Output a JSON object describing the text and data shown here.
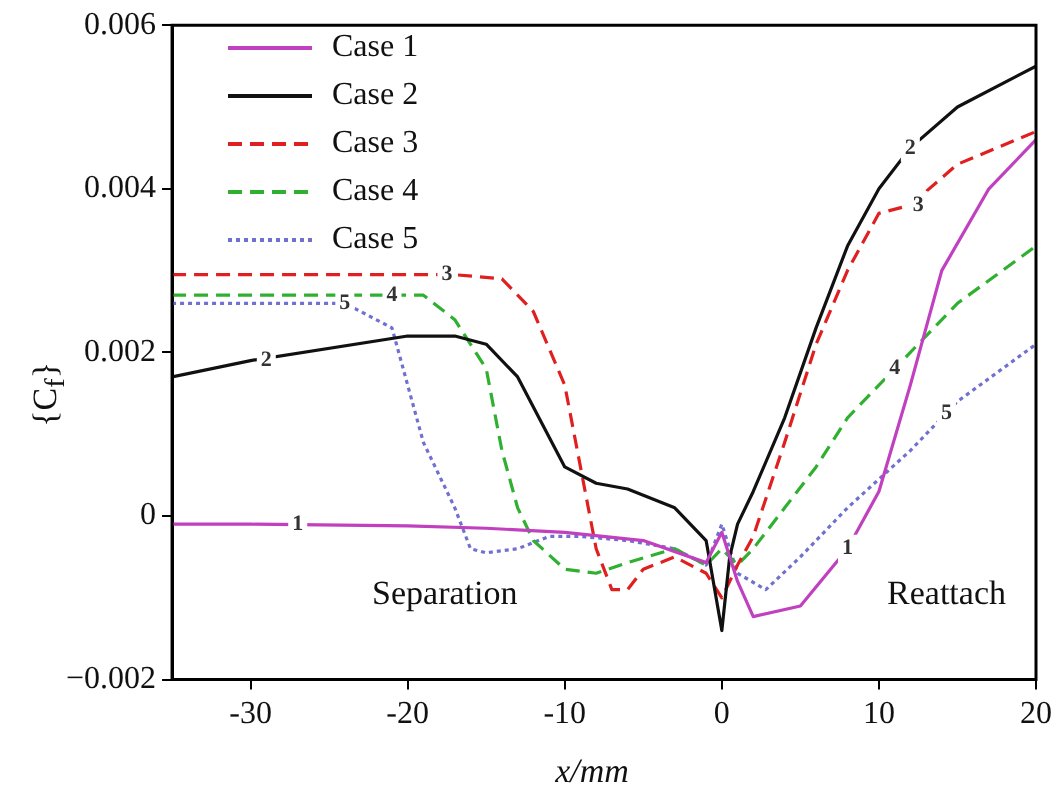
{
  "chart_data": {
    "type": "line",
    "xlabel": "x/mm",
    "ylabel": "{C$_{f}$}",
    "xlim": [
      -35,
      20
    ],
    "xticks": [
      -30,
      -20,
      -10,
      0,
      10,
      20
    ],
    "ylim": [
      -0.002,
      0.006
    ],
    "yticks": [
      {
        "value": -0.002,
        "label": "−0.002"
      },
      0,
      0.002,
      0.004,
      0.006
    ],
    "grid": false,
    "legend": "top left",
    "marker": "none",
    "annotations": [
      "Separation",
      "Reattach",
      {
        "text": "1",
        "x": -27,
        "y": -0.0001
      },
      {
        "text": "1",
        "x": 8,
        "y": -0.0004
      },
      {
        "text": "2",
        "x": -29,
        "y": 0.0019
      },
      {
        "text": "2",
        "x": 12,
        "y": 0.0045
      },
      {
        "text": "3",
        "x": -17.5,
        "y": 0.00295
      },
      {
        "text": "3",
        "x": 12.5,
        "y": 0.0038
      },
      {
        "text": "4",
        "x": -21,
        "y": 0.0027
      },
      {
        "text": "4",
        "x": 11,
        "y": 0.0018
      },
      {
        "text": "5",
        "x": -24,
        "y": 0.0026
      },
      {
        "text": "5",
        "x": 14.3,
        "y": 0.00125
      }
    ],
    "series": [
      {
        "name": "Case 1",
        "color": "#c040c0",
        "line_style": "solid",
        "x": [
          -35,
          -30,
          -20,
          -15,
          -10,
          -5,
          -1,
          0,
          1,
          2,
          5,
          8,
          10,
          12,
          14,
          17,
          20
        ],
        "values": [
          -0.0001,
          -0.0001,
          -0.00012,
          -0.00015,
          -0.0002,
          -0.0003,
          -0.00057,
          -0.0002,
          -0.0008,
          -0.00123,
          -0.0011,
          -0.0004,
          0.0003,
          0.0016,
          0.003,
          0.004,
          0.0046
        ]
      },
      {
        "name": "Case 2",
        "color": "#111111",
        "line_style": "solid",
        "x": [
          -35,
          -30,
          -20,
          -17,
          -15,
          -13,
          -10,
          -8,
          -6,
          -3,
          -1,
          0,
          0.5,
          1,
          2,
          4,
          6,
          8,
          10,
          12,
          15,
          20
        ],
        "values": [
          0.0017,
          0.0019,
          0.0022,
          0.0022,
          0.0021,
          0.0017,
          0.0006,
          0.0004,
          0.00033,
          0.0001,
          -0.0003,
          -0.0014,
          -0.0005,
          -0.0001,
          0.0003,
          0.0012,
          0.0023,
          0.0033,
          0.004,
          0.0045,
          0.005,
          0.0055
        ]
      },
      {
        "name": "Case 3",
        "color": "#e02020",
        "line_style": "dashed",
        "x": [
          -35,
          -17,
          -14,
          -12,
          -10,
          -9,
          -8,
          -7,
          -6,
          -5,
          -3,
          -1,
          0,
          1,
          2,
          4,
          6,
          8,
          10,
          12,
          15,
          20
        ],
        "values": [
          0.00295,
          0.00295,
          0.0029,
          0.0025,
          0.0016,
          0.0006,
          -0.0004,
          -0.0009,
          -0.0009,
          -0.00065,
          -0.0005,
          -0.0007,
          -0.001,
          -0.0006,
          -0.00025,
          0.0009,
          0.0021,
          0.003,
          0.0037,
          0.0038,
          0.0043,
          0.0047
        ]
      },
      {
        "name": "Case 4",
        "color": "#30b030",
        "line_style": "dashed",
        "x": [
          -35,
          -19,
          -17,
          -15,
          -14,
          -13,
          -12,
          -10,
          -8,
          -6,
          -3,
          -1,
          0,
          1,
          2,
          4,
          6,
          8,
          10,
          12,
          15,
          20
        ],
        "values": [
          0.0027,
          0.0027,
          0.0024,
          0.0018,
          0.0008,
          0.0001,
          -0.0003,
          -0.00065,
          -0.0007,
          -0.00057,
          -0.0004,
          -0.0006,
          -0.0004,
          -0.0006,
          -0.0004,
          0.0001,
          0.0006,
          0.0012,
          0.0016,
          0.002,
          0.0026,
          0.0033
        ]
      },
      {
        "name": "Case 5",
        "color": "#7070d0",
        "line_style": "dotted",
        "x": [
          -35,
          -24,
          -21,
          -20,
          -19,
          -17,
          -16,
          -15,
          -13,
          -11,
          -9,
          -6,
          -3,
          -1,
          0,
          1,
          2.8,
          5,
          8,
          10,
          12,
          15,
          20
        ],
        "values": [
          0.0026,
          0.0026,
          0.0023,
          0.0016,
          0.0009,
          0.0001,
          -0.0004,
          -0.00045,
          -0.0004,
          -0.00025,
          -0.00025,
          -0.0003,
          -0.0004,
          -0.0006,
          -0.0001,
          -0.0007,
          -0.0009,
          -0.0005,
          0.0001,
          0.00045,
          0.0008,
          0.0014,
          0.0021
        ]
      }
    ]
  }
}
